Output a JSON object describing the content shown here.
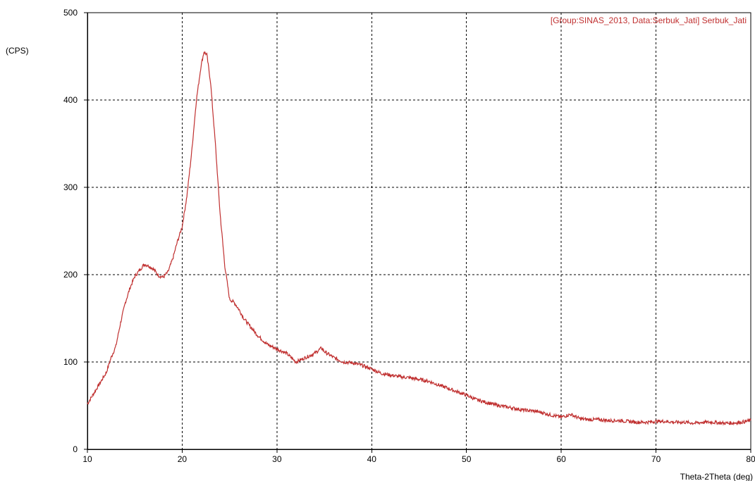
{
  "chart_data": {
    "type": "line",
    "ylabel": "(CPS)",
    "xlabel": "Theta-2Theta (deg)",
    "legend_position": "top-right",
    "xlim": [
      10,
      80
    ],
    "ylim": [
      0,
      500
    ],
    "x_ticks": [
      10,
      20,
      30,
      40,
      50,
      60,
      70,
      80
    ],
    "y_ticks": [
      0,
      100,
      200,
      300,
      400,
      500
    ],
    "grid": true,
    "series": [
      {
        "name": "[Group:SINAS_2013, Data:Serbuk_Jati] Serbuk_Jati",
        "color": "#c03030",
        "x": [
          10,
          11,
          12,
          12.5,
          13,
          13.5,
          14,
          14.5,
          15,
          15.5,
          16,
          16.5,
          17,
          17.5,
          18,
          18.5,
          19,
          19.5,
          20,
          20.5,
          21,
          21.5,
          22,
          22.3,
          22.6,
          23,
          23.5,
          24,
          24.5,
          25,
          25.5,
          26,
          26.5,
          27,
          28,
          29,
          30,
          31,
          32,
          33,
          34,
          34.7,
          35,
          36,
          37,
          38,
          39,
          40,
          41,
          42,
          43,
          44,
          45,
          46,
          47,
          48,
          49,
          50,
          51,
          52,
          53,
          54,
          55,
          56,
          57,
          58,
          59,
          60,
          61,
          62,
          63,
          64,
          65,
          66,
          67,
          68,
          69,
          70,
          71,
          72,
          73,
          74,
          75,
          76,
          77,
          78,
          79,
          80
        ],
        "y": [
          52,
          70,
          88,
          105,
          118,
          145,
          168,
          185,
          198,
          205,
          212,
          210,
          206,
          199,
          197,
          203,
          218,
          238,
          255,
          290,
          340,
          400,
          440,
          455,
          452,
          420,
          350,
          270,
          210,
          172,
          168,
          160,
          150,
          143,
          130,
          120,
          115,
          110,
          100,
          105,
          110,
          116,
          112,
          105,
          100,
          99,
          96,
          92,
          87,
          85,
          83,
          82,
          80,
          78,
          74,
          70,
          66,
          62,
          57,
          54,
          51,
          49,
          47,
          45,
          44,
          42,
          39,
          37,
          40,
          35,
          34,
          34,
          33,
          33,
          32,
          31,
          31,
          32,
          32,
          31,
          31,
          30,
          31,
          31,
          30,
          30,
          31,
          33
        ]
      }
    ]
  }
}
